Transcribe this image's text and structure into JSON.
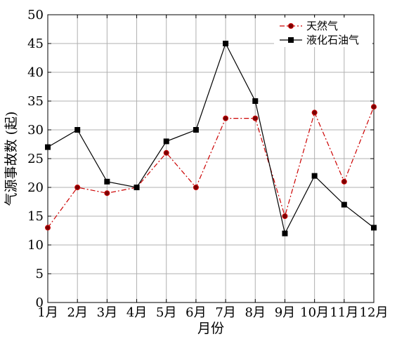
{
  "chart_data": {
    "type": "line",
    "categories": [
      "1月",
      "2月",
      "3月",
      "4月",
      "5月",
      "6月",
      "7月",
      "8月",
      "9月",
      "10月",
      "11月",
      "12月"
    ],
    "series": [
      {
        "name": "天然气",
        "values": [
          13,
          20,
          19,
          20,
          26,
          20,
          32,
          32,
          15,
          33,
          21,
          34
        ],
        "color": "#cc0000",
        "marker": "circle",
        "marker_fill": "#7a0000",
        "line_style": "dash-dot"
      },
      {
        "name": "液化石油气",
        "values": [
          27,
          30,
          21,
          20,
          28,
          30,
          45,
          35,
          12,
          22,
          17,
          13
        ],
        "color": "#000000",
        "marker": "square",
        "marker_fill": "#000000",
        "line_style": "solid"
      }
    ],
    "xlabel": "月份",
    "ylabel": "气源事故数 (起)",
    "ylim": [
      0,
      50
    ],
    "yticks": [
      0,
      5,
      10,
      15,
      20,
      25,
      30,
      35,
      40,
      45,
      50
    ],
    "grid": true,
    "legend_position": "top-right"
  }
}
